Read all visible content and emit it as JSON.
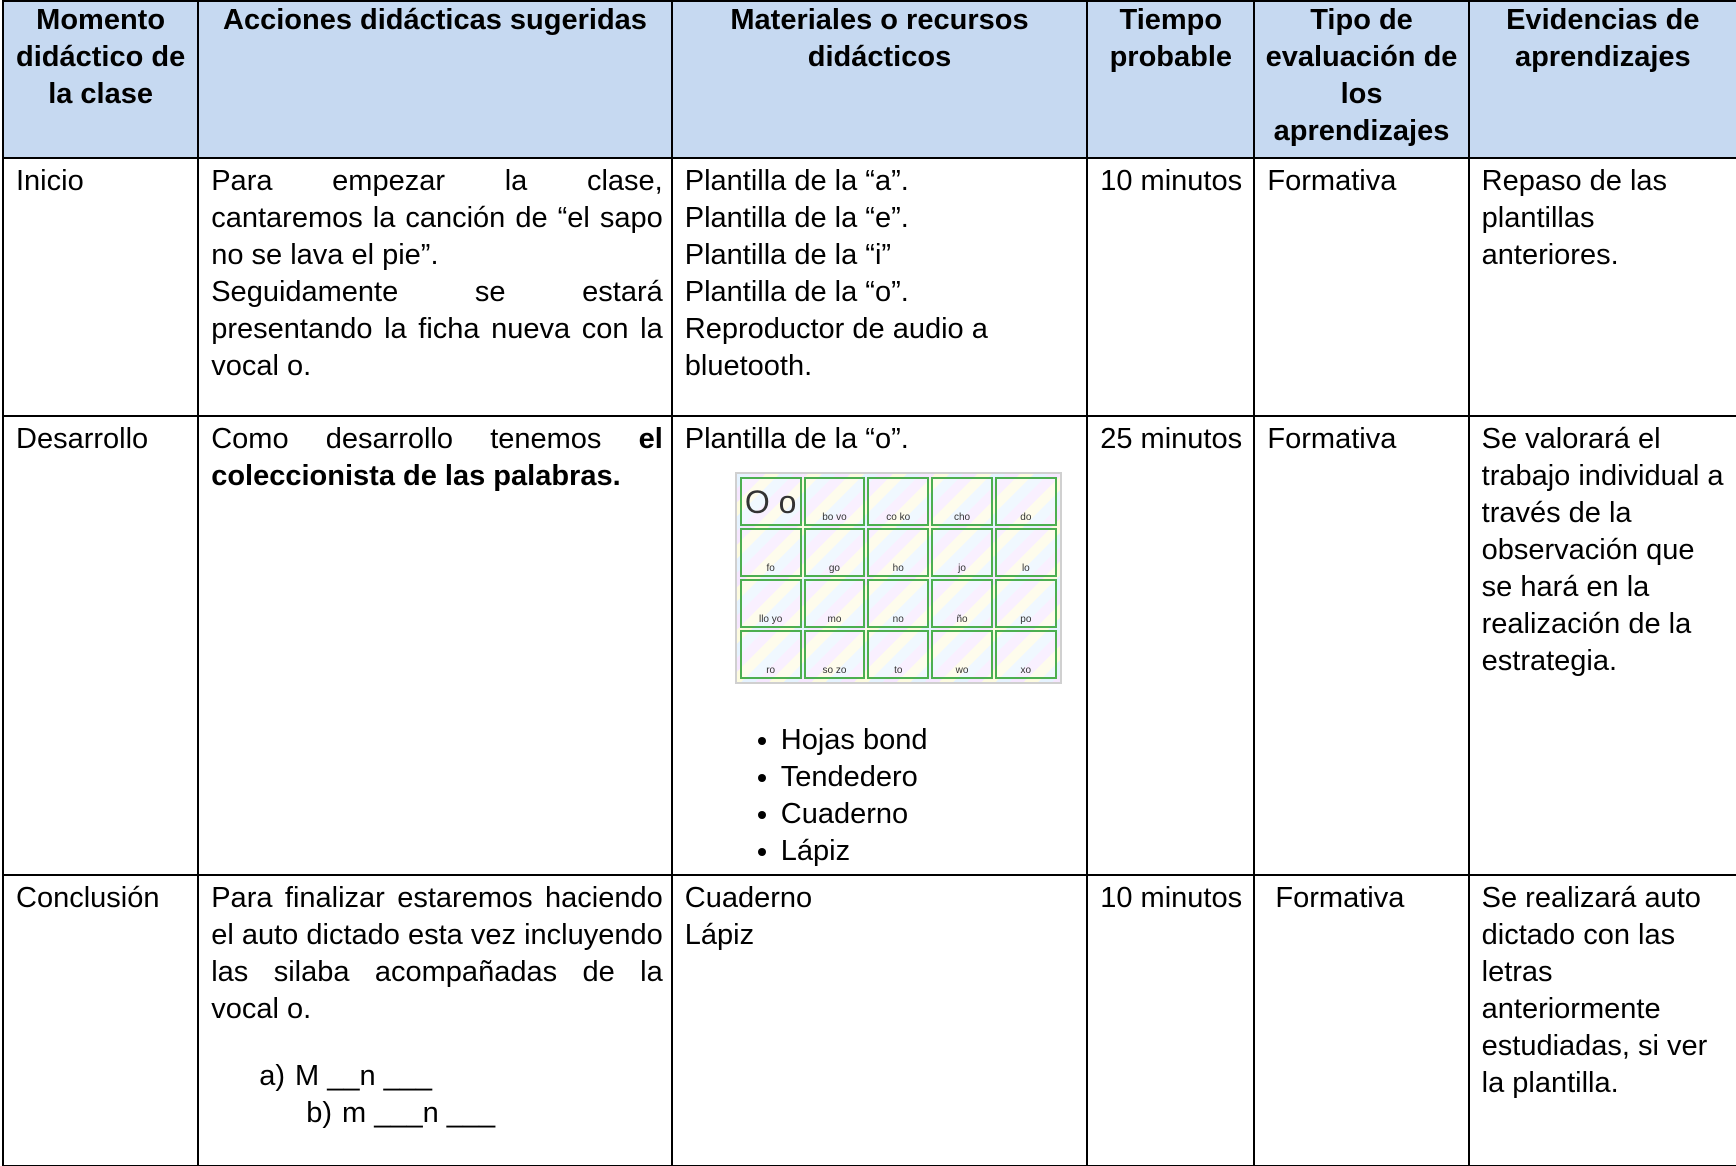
{
  "table": {
    "header": [
      "Momento didáctico de la clase",
      "Acciones didácticas sugeridas",
      "Materiales o recursos didácticos",
      "Tiempo probable",
      "Tipo de evaluación de los aprendizajes",
      "Evidencias de aprendizajes"
    ],
    "rows": [
      {
        "moment": "Inicio",
        "actions": [
          "Para empezar la clase, cantaremos la canción de “el sapo no se lava el pie”.",
          "Seguidamente se estará presentando la ficha nueva con la vocal o."
        ],
        "materials": [
          "Plantilla de la “a”.",
          "Plantilla de la “e”.",
          "Plantilla de la “i”",
          "Plantilla de la “o”.",
          "Reproductor de audio a bluetooth."
        ],
        "time": "10 minutos",
        "evaluation": "Formativa",
        "evidence": "Repaso de las plantillas anteriores."
      },
      {
        "moment": "Desarrollo",
        "actions": [
          "Como desarrollo tenemos",
          "el coleccionista de las palabras."
        ],
        "materials": [
          "Plantilla de la “o”."
        ],
        "image": [
          "O o",
          "bo vo",
          "co ko",
          "cho",
          "do",
          "fo",
          "go",
          "ho",
          "jo",
          "lo",
          "llo yo",
          "mo",
          "no",
          "ño",
          "po",
          "ro",
          "so zo",
          "to",
          "wo",
          "xo"
        ],
        "list": [
          "Hojas bond",
          "Tendedero",
          "Cuaderno",
          "Lápiz"
        ],
        "time": "25 minutos",
        "evaluation": "Formativa",
        "evidence": "Se valorará el trabajo individual a través de la observación que se hará en la realización de la estrategia."
      },
      {
        "moment": "Conclusión",
        "actions": [
          "Para finalizar estaremos haciendo el auto dictado esta vez incluyendo las silaba acompañadas de la vocal o."
        ],
        "exercises": [
          {
            "label": "a)",
            "text": "M __n ___"
          },
          {
            "label": "b)",
            "text": "m ___n ___"
          }
        ],
        "materials": [
          "Cuaderno",
          "Lápiz"
        ],
        "time": "10 minutos",
        "evaluation": "Formativa",
        "evidence": "Se realizará auto dictado con las letras anteriormente estudiadas, si ver la plantilla."
      }
    ]
  }
}
